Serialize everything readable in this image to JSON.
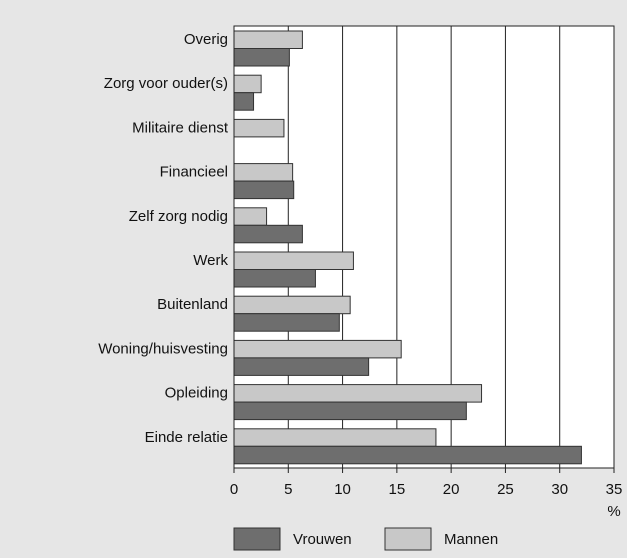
{
  "chart_data": {
    "type": "hbar",
    "categories": [
      "Overig",
      "Zorg voor ouder(s)",
      "Militaire dienst",
      "Financieel",
      "Zelf zorg nodig",
      "Werk",
      "Buitenland",
      "Woning/huisvesting",
      "Opleiding",
      "Einde relatie"
    ],
    "series": [
      {
        "name": "Mannen",
        "color": "#c8c8c8",
        "values": [
          6.3,
          2.5,
          4.6,
          5.4,
          3.0,
          11.0,
          10.7,
          15.4,
          22.8,
          18.6
        ]
      },
      {
        "name": "Vrouwen",
        "color": "#6e6e6e",
        "values": [
          5.1,
          1.8,
          null,
          5.5,
          6.3,
          7.5,
          9.7,
          12.4,
          21.4,
          32.0
        ]
      }
    ],
    "xlabel": "%",
    "xlim": [
      0,
      35
    ],
    "xticks": [
      0,
      5,
      10,
      15,
      20,
      25,
      30,
      35
    ],
    "grid": true,
    "legend_order": [
      "Vrouwen",
      "Mannen"
    ]
  }
}
